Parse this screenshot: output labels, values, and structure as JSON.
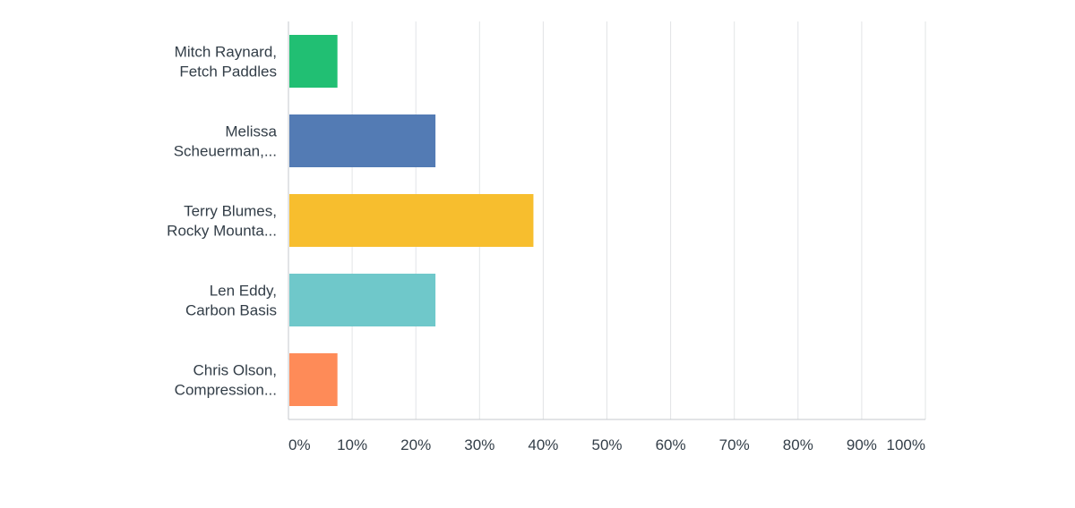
{
  "chart_data": {
    "type": "bar",
    "orientation": "horizontal",
    "categories": [
      [
        "Mitch Raynard,",
        "Fetch Paddles"
      ],
      [
        "Melissa",
        "Scheuerman,..."
      ],
      [
        "Terry Blumes,",
        "Rocky Mounta..."
      ],
      [
        "Len Eddy,",
        "Carbon Basis"
      ],
      [
        "Chris Olson,",
        "Compression..."
      ]
    ],
    "values": [
      7.69,
      23.08,
      38.46,
      23.08,
      7.69
    ],
    "colors": [
      "#21bf73",
      "#537bb4",
      "#f7be2e",
      "#6fc8ca",
      "#fe8b58"
    ],
    "xlim": [
      0,
      100
    ],
    "xticks": [
      "0%",
      "10%",
      "20%",
      "30%",
      "40%",
      "50%",
      "60%",
      "70%",
      "80%",
      "90%",
      "100%"
    ],
    "grid": true,
    "title": "",
    "xlabel": "",
    "ylabel": ""
  }
}
